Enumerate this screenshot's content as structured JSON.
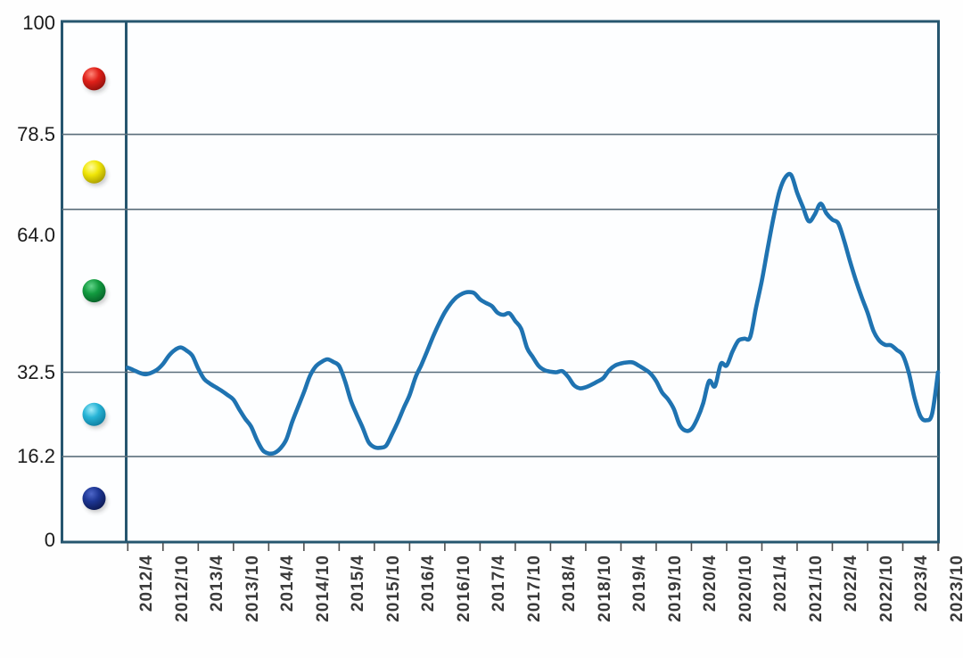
{
  "chart_data": {
    "type": "line",
    "title": "",
    "x_tick_labels": [
      "2012/4",
      "2012/10",
      "2013/4",
      "2013/10",
      "2014/4",
      "2014/10",
      "2015/4",
      "2015/10",
      "2016/4",
      "2016/10",
      "2017/4",
      "2017/10",
      "2018/4",
      "2018/10",
      "2019/4",
      "2019/10",
      "2020/4",
      "2020/10",
      "2021/4",
      "2021/10",
      "2022/4",
      "2022/10",
      "2023/4",
      "2023/10"
    ],
    "y_tick_labels": [
      "100",
      "78.5",
      "64.0",
      "32.5",
      "16.2",
      "0"
    ],
    "y_tick_values": [
      100,
      78.5,
      64.0,
      32.5,
      16.2,
      0
    ],
    "ylim": [
      0,
      100
    ],
    "grid": "horizontal-only",
    "x_monthly_start": "2012/4",
    "x_monthly_end": "2023/10",
    "series": [
      {
        "name": "index-line",
        "color": "#1f73b1",
        "values": [
          33.4,
          32.9,
          32.4,
          32.1,
          32.4,
          33.0,
          34.1,
          35.7,
          36.8,
          37.3,
          36.7,
          35.7,
          33.2,
          31.2,
          30.3,
          29.6,
          28.9,
          28.1,
          27.2,
          25.3,
          23.5,
          22.0,
          19.4,
          17.4,
          16.8,
          16.9,
          17.8,
          19.5,
          22.9,
          25.8,
          28.6,
          31.7,
          33.6,
          34.5,
          35.0,
          34.5,
          33.7,
          30.8,
          27.0,
          24.3,
          21.8,
          19.0,
          18.0,
          17.9,
          18.3,
          20.5,
          22.9,
          25.6,
          28.1,
          31.5,
          33.9,
          36.6,
          39.4,
          41.9,
          44.1,
          45.8,
          47.0,
          47.7,
          48.0,
          47.8,
          46.6,
          45.9,
          45.3,
          44.0,
          43.6,
          43.9,
          42.4,
          40.9,
          37.2,
          35.4,
          33.7,
          32.9,
          32.6,
          32.5,
          32.7,
          31.6,
          30.0,
          29.4,
          29.6,
          30.1,
          30.7,
          31.4,
          32.9,
          33.8,
          34.2,
          34.4,
          34.4,
          33.8,
          33.1,
          32.3,
          30.8,
          28.6,
          27.3,
          25.4,
          22.3,
          21.2,
          21.5,
          23.5,
          26.5,
          30.8,
          29.8,
          34.1,
          33.8,
          36.5,
          38.6,
          39.0,
          39.3,
          45.0,
          50.3,
          56.5,
          62.5,
          67.5,
          70.2,
          70.6,
          67.2,
          64.4,
          61.7,
          63.0,
          65.1,
          63.2,
          62.0,
          61.3,
          58.0,
          54.0,
          50.3,
          47.0,
          44.0,
          40.5,
          38.6,
          37.8,
          37.7,
          36.8,
          35.8,
          32.5,
          27.5,
          24.0,
          23.2,
          24.5,
          32.5
        ]
      }
    ],
    "legend_balls": [
      {
        "name": "red-ball",
        "zone": "78.5-100",
        "base": "#e02019",
        "dark": "#8f100c",
        "light": "#ff8577"
      },
      {
        "name": "yellow-ball",
        "zone": "64.0-78.5",
        "base": "#f0e607",
        "dark": "#a89c00",
        "light": "#fffc9a"
      },
      {
        "name": "green-ball",
        "zone": "32.5-64.0",
        "base": "#129b3f",
        "dark": "#065f28",
        "light": "#62d38a"
      },
      {
        "name": "cyan-ball",
        "zone": "16.2-32.5",
        "base": "#27b4d6",
        "dark": "#0e7c9e",
        "light": "#a2ecf9"
      },
      {
        "name": "navy-ball",
        "zone": "0-16.2",
        "base": "#1d3694",
        "dark": "#0c1850",
        "light": "#4d66c8"
      }
    ],
    "colors": {
      "frame": "#26566f",
      "gridline": "#5b6e7b",
      "tick": "#4f4f4f",
      "plot_fill": "#fdfeff",
      "line": "#1f73b1"
    }
  }
}
